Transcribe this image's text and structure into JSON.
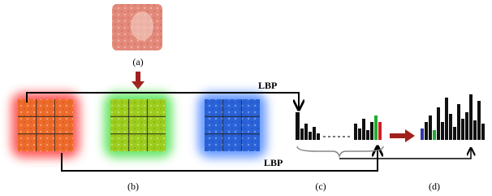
{
  "labels": {
    "a": "(a)",
    "b": "(b)",
    "c": "(c)",
    "d": "(d)"
  },
  "arrows": {
    "top": "LBP",
    "bottom": "LBP"
  }
}
